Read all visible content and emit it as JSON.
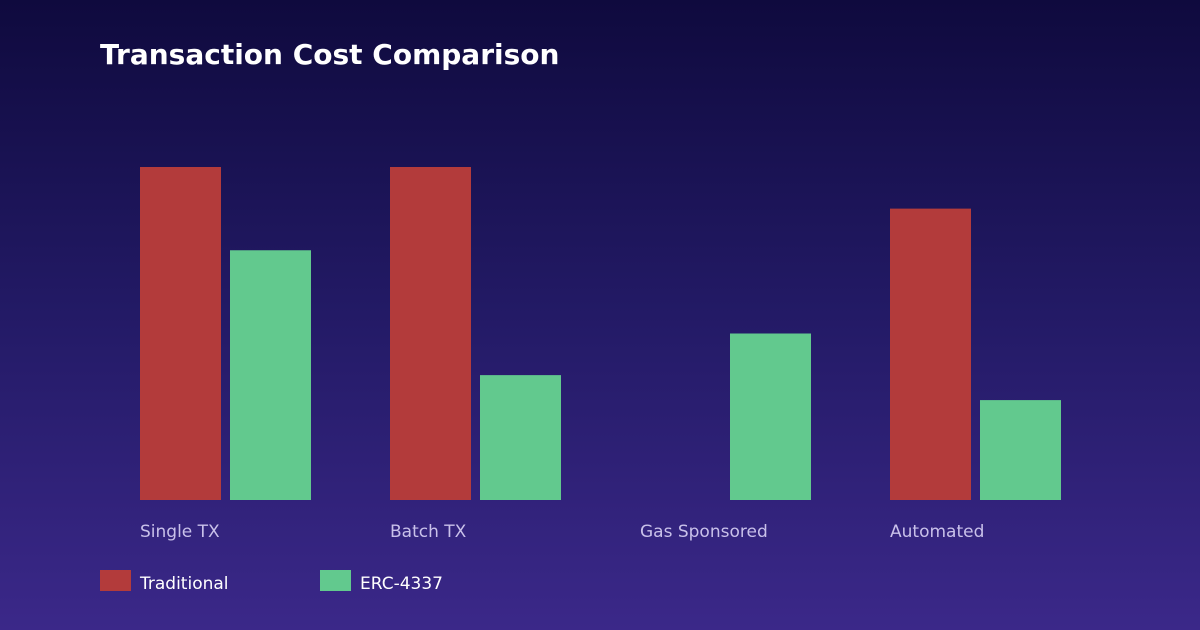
{
  "chart_data": {
    "type": "bar",
    "title": "Transaction Cost Comparison",
    "categories": [
      "Single TX",
      "Batch TX",
      "Gas Sponsored",
      "Automated"
    ],
    "series": [
      {
        "name": "Traditional",
        "color": "#b33b3b",
        "values": [
          100,
          100,
          0,
          87.5
        ]
      },
      {
        "name": "ERC-4337",
        "color": "#62c98e",
        "values": [
          75,
          37.5,
          50,
          30
        ]
      }
    ],
    "ylim": [
      0,
      100
    ],
    "grid": false,
    "legend": "bottom-left",
    "xlabel": "",
    "ylabel": ""
  }
}
